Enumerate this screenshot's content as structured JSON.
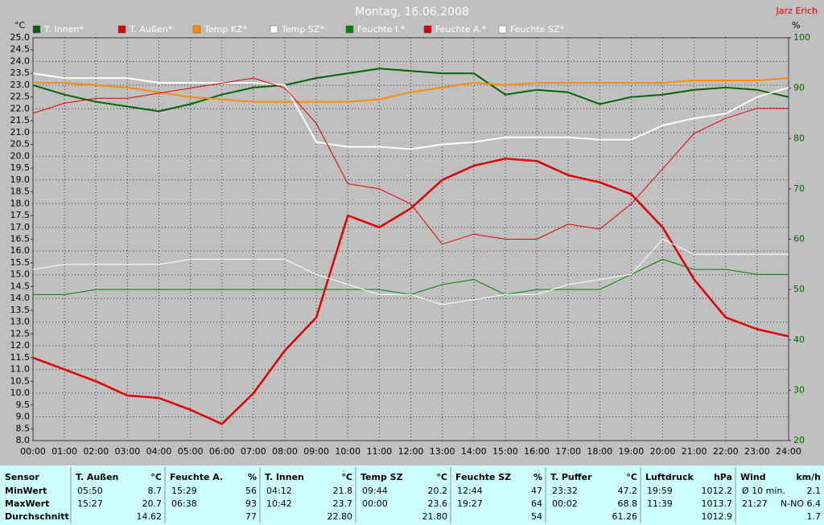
{
  "chart_data": {
    "type": "line",
    "title": "Montag, 16.06.2008",
    "author": "Jarz Erich",
    "ylabel": "°C",
    "y2label": "%",
    "x": [
      0,
      1,
      2,
      3,
      4,
      5,
      6,
      7,
      8,
      9,
      10,
      11,
      12,
      13,
      14,
      15,
      16,
      17,
      18,
      19,
      20,
      21,
      22,
      23,
      24
    ],
    "xlim": [
      0,
      24
    ],
    "xticks": [
      {
        "value": 0,
        "label": "00:00"
      },
      {
        "value": 1,
        "label": "01:00"
      },
      {
        "value": 2,
        "label": "02:00"
      },
      {
        "value": 3,
        "label": "03:00"
      },
      {
        "value": 4,
        "label": "04:00"
      },
      {
        "value": 5,
        "label": "05:00"
      },
      {
        "value": 6,
        "label": "06:00"
      },
      {
        "value": 7,
        "label": "07:00"
      },
      {
        "value": 8,
        "label": "08:00"
      },
      {
        "value": 9,
        "label": "09:00"
      },
      {
        "value": 10,
        "label": "10:00"
      },
      {
        "value": 11,
        "label": "11:00"
      },
      {
        "value": 12,
        "label": "12:00"
      },
      {
        "value": 13,
        "label": "13:00"
      },
      {
        "value": 14,
        "label": "14:00"
      },
      {
        "value": 15,
        "label": "15:00"
      },
      {
        "value": 16,
        "label": "16:00"
      },
      {
        "value": 17,
        "label": "17:00"
      },
      {
        "value": 18,
        "label": "18:00"
      },
      {
        "value": 19,
        "label": "19:00"
      },
      {
        "value": 20,
        "label": "20:00"
      },
      {
        "value": 21,
        "label": "21:00"
      },
      {
        "value": 22,
        "label": "22:00"
      },
      {
        "value": 23,
        "label": "23:00"
      },
      {
        "value": 24,
        "label": "24:00"
      }
    ],
    "ylim": [
      8,
      25
    ],
    "yticks": [
      {
        "value": 8,
        "label": "8.0"
      },
      8.5,
      {
        "value": 9,
        "label": "9.0"
      },
      9.5,
      {
        "value": 10,
        "label": "10.0"
      },
      10.5,
      {
        "value": 11,
        "label": "11.0"
      },
      11.5,
      {
        "value": 12,
        "label": "12.0"
      },
      12.5,
      {
        "value": 13,
        "label": "13.0"
      },
      13.5,
      {
        "value": 14,
        "label": "14.0"
      },
      14.5,
      {
        "value": 15,
        "label": "15.0"
      },
      15.5,
      {
        "value": 16,
        "label": "16.0"
      },
      16.5,
      {
        "value": 17,
        "label": "17.0"
      },
      17.5,
      {
        "value": 18,
        "label": "18.0"
      },
      18.5,
      {
        "value": 19,
        "label": "19.0"
      },
      19.5,
      {
        "value": 20,
        "label": "20.0"
      },
      20.5,
      {
        "value": 21,
        "label": "21.0"
      },
      21.5,
      {
        "value": 22,
        "label": "22.0"
      },
      22.5,
      {
        "value": 23,
        "label": "23.0"
      },
      23.5,
      {
        "value": 24,
        "label": "24.0"
      },
      24.5,
      {
        "value": 25,
        "label": "25.0"
      }
    ],
    "y2lim": [
      20,
      100
    ],
    "y2ticks": [
      20,
      30,
      40,
      50,
      60,
      70,
      80,
      90,
      100
    ],
    "grid": true,
    "series": [
      {
        "name": "T. Innen*",
        "color": "#006400",
        "values": [
          23.0,
          22.6,
          22.3,
          22.1,
          21.9,
          22.2,
          22.6,
          22.9,
          23.0,
          23.3,
          23.5,
          23.7,
          23.6,
          23.5,
          23.5,
          22.6,
          22.8,
          22.7,
          22.2,
          22.5,
          22.6,
          22.8,
          22.9,
          22.8,
          22.5
        ]
      },
      {
        "name": "T. Außen*",
        "color": "#e00000",
        "values": [
          11.5,
          11.0,
          10.5,
          9.9,
          9.8,
          9.3,
          8.7,
          10.0,
          11.8,
          13.2,
          17.5,
          17.0,
          17.8,
          19.0,
          19.6,
          19.9,
          19.8,
          19.2,
          18.9,
          18.4,
          17.0,
          14.8,
          13.2,
          12.7,
          12.4
        ]
      },
      {
        "name": "Temp KZ*",
        "color": "#ff8c00",
        "values": [
          23.1,
          23.1,
          23.0,
          22.9,
          22.7,
          22.5,
          22.4,
          22.3,
          22.3,
          22.3,
          22.3,
          22.4,
          22.7,
          22.9,
          23.1,
          23.0,
          23.1,
          23.1,
          23.1,
          23.1,
          23.1,
          23.2,
          23.2,
          23.2,
          23.3
        ]
      },
      {
        "name": "Temp SZ*",
        "color": "#ffffff",
        "values": [
          23.5,
          23.3,
          23.3,
          23.3,
          23.1,
          23.1,
          23.1,
          23.1,
          23.0,
          20.6,
          20.4,
          20.4,
          20.3,
          20.5,
          20.6,
          20.8,
          20.8,
          20.8,
          20.7,
          20.7,
          21.3,
          21.6,
          21.8,
          22.5,
          22.9
        ]
      },
      {
        "name": "Feuchte I.*",
        "color": "#008000",
        "axis": "y2",
        "values": [
          49,
          49,
          50,
          50,
          50,
          50,
          50,
          50,
          50,
          50,
          50,
          50,
          49,
          51,
          52,
          49,
          50,
          50,
          50,
          53,
          56,
          54,
          54,
          53,
          53
        ]
      },
      {
        "name": "Feuchte A.*",
        "color": "#e00000",
        "axis": "y2",
        "values": [
          85,
          87,
          88,
          88,
          89,
          90,
          91,
          92,
          90,
          83,
          71,
          70,
          67,
          59,
          61,
          60,
          60,
          63,
          62,
          67,
          74,
          81,
          84,
          86,
          86
        ]
      },
      {
        "name": "Feuchte SZ*",
        "color": "#ffffff",
        "axis": "y2",
        "values": [
          54,
          55,
          55,
          55,
          55,
          56,
          56,
          56,
          56,
          53,
          51,
          49,
          49,
          47,
          48,
          49,
          49,
          51,
          52,
          53,
          60,
          57,
          57,
          57,
          57
        ]
      }
    ]
  },
  "table": {
    "corner": "Sensor",
    "columns": [
      {
        "name": "T. Außen",
        "unit": "°C"
      },
      {
        "name": "Feuchte A.",
        "unit": "%"
      },
      {
        "name": "T. Innen",
        "unit": "°C"
      },
      {
        "name": "Temp SZ",
        "unit": "°C"
      },
      {
        "name": "Feuchte SZ",
        "unit": "%"
      },
      {
        "name": "T. Puffer",
        "unit": "°C"
      },
      {
        "name": "Luftdruck",
        "unit": "hPa"
      },
      {
        "name": "Wind",
        "unit": "km/h"
      }
    ],
    "rows": [
      {
        "label": "MinWert",
        "cells": [
          {
            "time": "05:50",
            "value": "8.7"
          },
          {
            "time": "15:29",
            "value": "56"
          },
          {
            "time": "04:12",
            "value": "21.8"
          },
          {
            "time": "09:44",
            "value": "20.2"
          },
          {
            "time": "12:44",
            "value": "47"
          },
          {
            "time": "23:32",
            "value": "47.2"
          },
          {
            "time": "19:59",
            "value": "1012.2"
          },
          {
            "time": "Ø 10 min.",
            "value": "2.1"
          }
        ]
      },
      {
        "label": "MaxWert",
        "cells": [
          {
            "time": "15:27",
            "value": "20.7"
          },
          {
            "time": "06:38",
            "value": "93"
          },
          {
            "time": "10:42",
            "value": "23.7"
          },
          {
            "time": "00:00",
            "value": "23.6"
          },
          {
            "time": "19:27",
            "value": "64"
          },
          {
            "time": "00:02",
            "value": "68.8"
          },
          {
            "time": "11:39",
            "value": "1013.7"
          },
          {
            "time": "21:27",
            "value": "N-NO 6.4"
          }
        ]
      },
      {
        "label": "Durchschnitt",
        "cells": [
          {
            "value": "14.62"
          },
          {
            "value": "77"
          },
          {
            "value": "22.80"
          },
          {
            "value": "21.80"
          },
          {
            "value": "54"
          },
          {
            "value": "61.26"
          },
          {
            "value": "1012.9"
          },
          {
            "value": "1.7"
          }
        ]
      }
    ]
  }
}
